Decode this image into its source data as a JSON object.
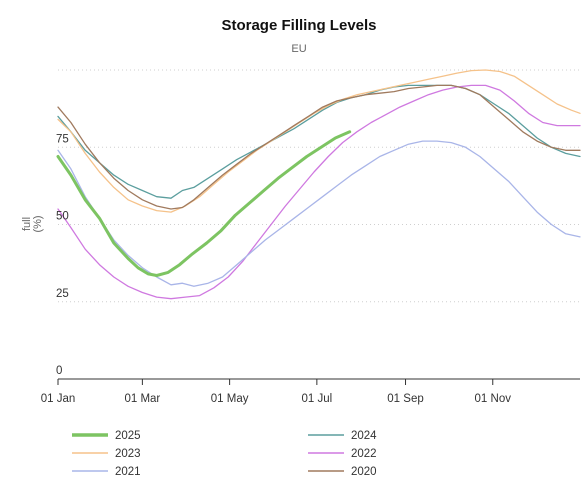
{
  "chart_data": {
    "type": "line",
    "title": "Storage Filling Levels",
    "subtitle": "EU",
    "ylabel": "full\n(%)",
    "xlabel": "",
    "x_unit": "day of year",
    "ylim": [
      0,
      100
    ],
    "xlim": [
      1,
      366
    ],
    "y_ticks": [
      0,
      25,
      50,
      75
    ],
    "x_ticks": [
      {
        "label": "01 Jan",
        "x": 1
      },
      {
        "label": "01 Mar",
        "x": 60
      },
      {
        "label": "01 May",
        "x": 121
      },
      {
        "label": "01 Jul",
        "x": 182
      },
      {
        "label": "01 Sep",
        "x": 244
      },
      {
        "label": "01 Nov",
        "x": 305
      }
    ],
    "grid": "horizontal dotted",
    "legend_position": "bottom",
    "series": [
      {
        "name": "2025",
        "color": "#7dc462",
        "highlight": true,
        "points": [
          [
            1,
            72
          ],
          [
            10,
            66
          ],
          [
            20,
            58
          ],
          [
            30,
            52
          ],
          [
            40,
            44
          ],
          [
            50,
            39
          ],
          [
            57,
            36
          ],
          [
            64,
            34
          ],
          [
            70,
            33.5
          ],
          [
            78,
            34.5
          ],
          [
            86,
            37
          ],
          [
            95,
            40.5
          ],
          [
            105,
            44
          ],
          [
            115,
            48
          ],
          [
            125,
            53
          ],
          [
            135,
            57
          ],
          [
            145,
            61
          ],
          [
            155,
            65
          ],
          [
            165,
            68.5
          ],
          [
            175,
            72
          ],
          [
            185,
            75
          ],
          [
            195,
            78
          ],
          [
            205,
            80
          ]
        ]
      },
      {
        "name": "2024",
        "color": "#5b9e9e",
        "points": [
          [
            1,
            85
          ],
          [
            10,
            80
          ],
          [
            20,
            74
          ],
          [
            30,
            70
          ],
          [
            40,
            66
          ],
          [
            50,
            63
          ],
          [
            60,
            61
          ],
          [
            70,
            59
          ],
          [
            80,
            58.5
          ],
          [
            88,
            61
          ],
          [
            96,
            62
          ],
          [
            106,
            65
          ],
          [
            116,
            68
          ],
          [
            126,
            71
          ],
          [
            136,
            73.5
          ],
          [
            146,
            76
          ],
          [
            156,
            78.5
          ],
          [
            166,
            81
          ],
          [
            176,
            84
          ],
          [
            186,
            87
          ],
          [
            196,
            89.5
          ],
          [
            206,
            91
          ],
          [
            216,
            92
          ],
          [
            226,
            93.5
          ],
          [
            236,
            94.5
          ],
          [
            246,
            95
          ],
          [
            256,
            95
          ],
          [
            266,
            95
          ],
          [
            276,
            95
          ],
          [
            286,
            94
          ],
          [
            296,
            92
          ],
          [
            306,
            89
          ],
          [
            316,
            86
          ],
          [
            326,
            82
          ],
          [
            336,
            78
          ],
          [
            346,
            75
          ],
          [
            356,
            73
          ],
          [
            366,
            72
          ]
        ]
      },
      {
        "name": "2023",
        "color": "#f5c28a",
        "points": [
          [
            1,
            84
          ],
          [
            10,
            80
          ],
          [
            20,
            73
          ],
          [
            30,
            67
          ],
          [
            40,
            62
          ],
          [
            50,
            58
          ],
          [
            60,
            56
          ],
          [
            70,
            54.5
          ],
          [
            80,
            54
          ],
          [
            90,
            56
          ],
          [
            100,
            59
          ],
          [
            110,
            63
          ],
          [
            120,
            67
          ],
          [
            130,
            70.5
          ],
          [
            140,
            74
          ],
          [
            150,
            77
          ],
          [
            160,
            80
          ],
          [
            170,
            83
          ],
          [
            180,
            86
          ],
          [
            190,
            88.5
          ],
          [
            200,
            90.5
          ],
          [
            210,
            92
          ],
          [
            220,
            93
          ],
          [
            230,
            94
          ],
          [
            240,
            95
          ],
          [
            250,
            96
          ],
          [
            260,
            97
          ],
          [
            270,
            98
          ],
          [
            280,
            99
          ],
          [
            290,
            99.8
          ],
          [
            300,
            100
          ],
          [
            310,
            99.5
          ],
          [
            320,
            98
          ],
          [
            330,
            95
          ],
          [
            340,
            92
          ],
          [
            350,
            89
          ],
          [
            360,
            87
          ],
          [
            366,
            86
          ]
        ]
      },
      {
        "name": "2022",
        "color": "#cf79e0",
        "points": [
          [
            1,
            55
          ],
          [
            10,
            49
          ],
          [
            20,
            42
          ],
          [
            30,
            37
          ],
          [
            40,
            33
          ],
          [
            50,
            30
          ],
          [
            60,
            28
          ],
          [
            70,
            26.5
          ],
          [
            80,
            26
          ],
          [
            90,
            26.5
          ],
          [
            100,
            27
          ],
          [
            110,
            29.5
          ],
          [
            120,
            33
          ],
          [
            130,
            38
          ],
          [
            140,
            44
          ],
          [
            150,
            50
          ],
          [
            160,
            56
          ],
          [
            170,
            61.5
          ],
          [
            180,
            67
          ],
          [
            190,
            72
          ],
          [
            200,
            76.5
          ],
          [
            210,
            80
          ],
          [
            220,
            83
          ],
          [
            230,
            85.5
          ],
          [
            240,
            88
          ],
          [
            250,
            90
          ],
          [
            260,
            92
          ],
          [
            270,
            93.5
          ],
          [
            280,
            94.5
          ],
          [
            290,
            95
          ],
          [
            300,
            95
          ],
          [
            310,
            93.5
          ],
          [
            320,
            90
          ],
          [
            330,
            86
          ],
          [
            340,
            83
          ],
          [
            350,
            82
          ],
          [
            360,
            82
          ],
          [
            366,
            82
          ]
        ]
      },
      {
        "name": "2021",
        "color": "#a9b5e8",
        "points": [
          [
            1,
            74
          ],
          [
            10,
            68
          ],
          [
            20,
            59
          ],
          [
            30,
            52
          ],
          [
            40,
            45
          ],
          [
            50,
            40
          ],
          [
            60,
            36
          ],
          [
            70,
            33
          ],
          [
            80,
            30.5
          ],
          [
            88,
            31
          ],
          [
            96,
            30
          ],
          [
            106,
            31
          ],
          [
            116,
            33
          ],
          [
            126,
            37
          ],
          [
            136,
            41
          ],
          [
            146,
            45
          ],
          [
            156,
            48.5
          ],
          [
            166,
            52
          ],
          [
            176,
            55.5
          ],
          [
            186,
            59
          ],
          [
            196,
            62.5
          ],
          [
            206,
            66
          ],
          [
            216,
            69
          ],
          [
            226,
            72
          ],
          [
            236,
            74
          ],
          [
            246,
            76
          ],
          [
            256,
            77
          ],
          [
            266,
            77
          ],
          [
            276,
            76.5
          ],
          [
            286,
            75
          ],
          [
            296,
            72
          ],
          [
            306,
            68
          ],
          [
            316,
            64
          ],
          [
            326,
            59
          ],
          [
            336,
            54
          ],
          [
            346,
            50
          ],
          [
            356,
            47
          ],
          [
            366,
            46
          ]
        ]
      },
      {
        "name": "2020",
        "color": "#a07a5e",
        "points": [
          [
            1,
            88
          ],
          [
            10,
            83
          ],
          [
            20,
            76
          ],
          [
            30,
            70
          ],
          [
            40,
            65
          ],
          [
            50,
            61
          ],
          [
            60,
            58
          ],
          [
            70,
            56
          ],
          [
            80,
            55
          ],
          [
            88,
            55.5
          ],
          [
            96,
            58
          ],
          [
            106,
            62
          ],
          [
            116,
            66
          ],
          [
            126,
            69.5
          ],
          [
            136,
            73
          ],
          [
            146,
            76
          ],
          [
            156,
            79
          ],
          [
            166,
            82
          ],
          [
            176,
            85
          ],
          [
            186,
            88
          ],
          [
            196,
            90
          ],
          [
            206,
            91
          ],
          [
            216,
            92
          ],
          [
            226,
            92.5
          ],
          [
            236,
            93
          ],
          [
            246,
            94
          ],
          [
            256,
            94.5
          ],
          [
            266,
            95
          ],
          [
            276,
            95
          ],
          [
            286,
            94
          ],
          [
            296,
            92
          ],
          [
            306,
            88
          ],
          [
            316,
            84
          ],
          [
            326,
            80
          ],
          [
            336,
            77
          ],
          [
            346,
            75
          ],
          [
            356,
            74
          ],
          [
            366,
            74
          ]
        ]
      }
    ]
  }
}
